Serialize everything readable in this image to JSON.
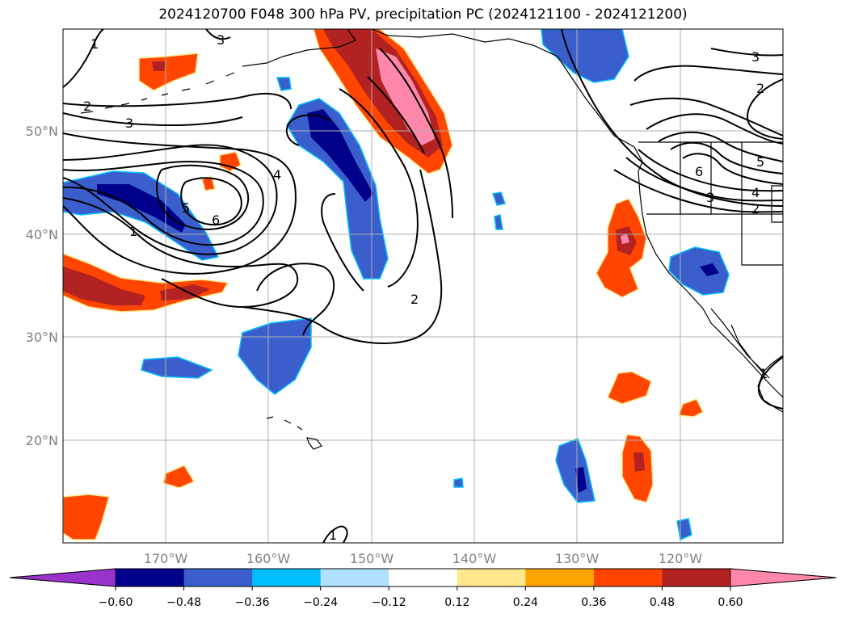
{
  "title": "2024120700 F048 300 hPa PV, precipitation PC (2024121100 - 2024121200)",
  "lat_labels": [
    "50°N",
    "40°N",
    "30°N",
    "20°N"
  ],
  "lon_labels": [
    "170°W",
    "160°W",
    "150°W",
    "140°W",
    "130°W",
    "120°W"
  ],
  "colorbar": {
    "ticks": [
      "−0.60",
      "−0.48",
      "−0.36",
      "−0.24",
      "−0.12",
      "0.12",
      "0.24",
      "0.36",
      "0.48",
      "0.60"
    ],
    "colors": [
      "#9933cc",
      "#00008b",
      "#3a5fcd",
      "#00bfff",
      "#b0e2ff",
      "#ffffff",
      "#ffe88c",
      "#ffa500",
      "#ff4500",
      "#b22222",
      "#ff88aa"
    ]
  },
  "contour_labels": [
    "1",
    "3",
    "2",
    "3",
    "4",
    "5",
    "6",
    "1",
    "2",
    "3",
    "2",
    "5",
    "6",
    "3",
    "4",
    "2",
    "1",
    "1"
  ],
  "colors": {
    "coast": "#000000",
    "grid": "#b0b0b0",
    "contour": "#000000"
  }
}
